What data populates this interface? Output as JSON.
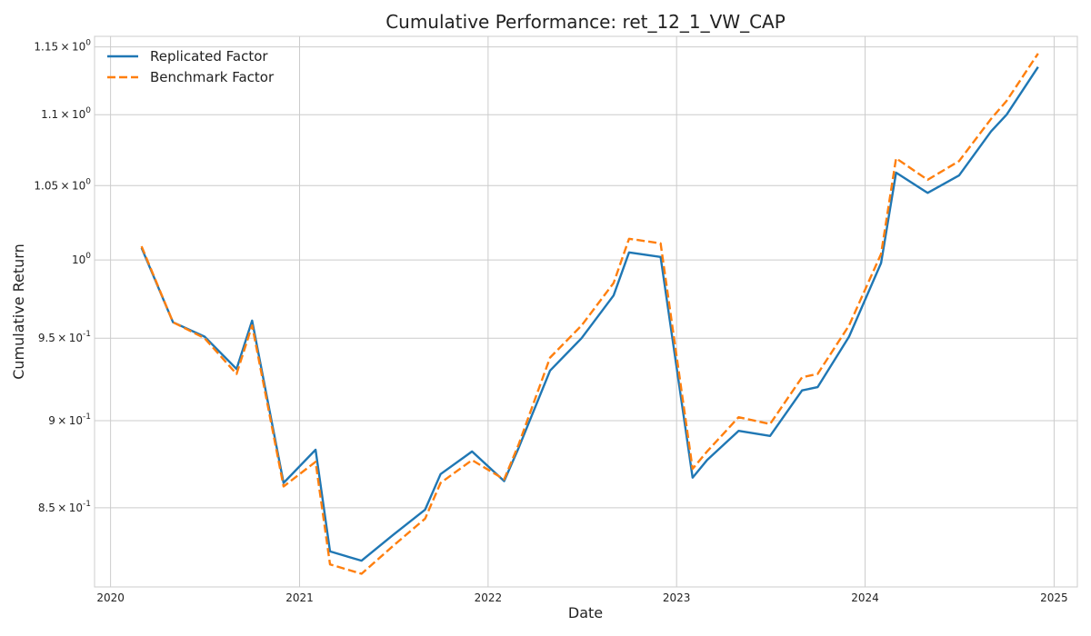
{
  "chart_data": {
    "type": "line",
    "title": "Cumulative Performance: ret_12_1_VW_CAP",
    "xlabel": "Date",
    "ylabel": "Cumulative Return",
    "yscale": "log",
    "xlim": [
      "2019-12-01",
      "2025-02-15"
    ],
    "ylim": [
      0.807,
      1.158
    ],
    "grid": true,
    "legend_position": "top-left",
    "x_ticks": [
      "2020",
      "2021",
      "2022",
      "2023",
      "2024",
      "2025"
    ],
    "y_ticks": [
      {
        "value": 0.85,
        "mant": "8.5",
        "exp": "-1"
      },
      {
        "value": 0.9,
        "mant": "9",
        "exp": "-1"
      },
      {
        "value": 0.95,
        "mant": "9.5",
        "exp": "-1"
      },
      {
        "value": 1.0,
        "mant": "",
        "exp": "0"
      },
      {
        "value": 1.05,
        "mant": "1.05",
        "exp": "0"
      },
      {
        "value": 1.1,
        "mant": "1.1",
        "exp": "0"
      },
      {
        "value": 1.15,
        "mant": "1.15",
        "exp": "0"
      }
    ],
    "series": [
      {
        "name": "Replicated Factor",
        "color": "#1f77b4",
        "style": "solid",
        "points": [
          [
            "2020-03-01",
            1.008
          ],
          [
            "2020-05-01",
            0.96
          ],
          [
            "2020-07-01",
            0.951
          ],
          [
            "2020-09-01",
            0.931
          ],
          [
            "2020-10-01",
            0.961
          ],
          [
            "2020-12-01",
            0.864
          ],
          [
            "2021-02-01",
            0.883
          ],
          [
            "2021-03-01",
            0.826
          ],
          [
            "2021-05-01",
            0.821
          ],
          [
            "2021-07-01",
            0.835
          ],
          [
            "2021-09-01",
            0.849
          ],
          [
            "2021-10-01",
            0.869
          ],
          [
            "2021-12-01",
            0.882
          ],
          [
            "2022-02-01",
            0.865
          ],
          [
            "2022-03-01",
            0.884
          ],
          [
            "2022-05-01",
            0.93
          ],
          [
            "2022-07-01",
            0.95
          ],
          [
            "2022-09-01",
            0.977
          ],
          [
            "2022-10-01",
            1.005
          ],
          [
            "2022-12-01",
            1.002
          ],
          [
            "2023-02-01",
            0.867
          ],
          [
            "2023-03-01",
            0.877
          ],
          [
            "2023-05-01",
            0.894
          ],
          [
            "2023-07-01",
            0.891
          ],
          [
            "2023-09-01",
            0.918
          ],
          [
            "2023-10-01",
            0.92
          ],
          [
            "2023-12-01",
            0.951
          ],
          [
            "2024-02-01",
            0.998
          ],
          [
            "2024-03-01",
            1.059
          ],
          [
            "2024-05-01",
            1.045
          ],
          [
            "2024-07-01",
            1.057
          ],
          [
            "2024-09-01",
            1.088
          ],
          [
            "2024-10-01",
            1.1
          ],
          [
            "2024-12-01",
            1.135
          ]
        ]
      },
      {
        "name": "Benchmark Factor",
        "color": "#ff7f0e",
        "style": "dashed",
        "points": [
          [
            "2020-03-01",
            1.009
          ],
          [
            "2020-05-01",
            0.96
          ],
          [
            "2020-07-01",
            0.95
          ],
          [
            "2020-09-01",
            0.928
          ],
          [
            "2020-10-01",
            0.958
          ],
          [
            "2020-12-01",
            0.862
          ],
          [
            "2021-02-01",
            0.876
          ],
          [
            "2021-03-01",
            0.819
          ],
          [
            "2021-05-01",
            0.814
          ],
          [
            "2021-07-01",
            0.829
          ],
          [
            "2021-09-01",
            0.844
          ],
          [
            "2021-10-01",
            0.864
          ],
          [
            "2021-12-01",
            0.877
          ],
          [
            "2022-02-01",
            0.866
          ],
          [
            "2022-03-01",
            0.886
          ],
          [
            "2022-05-01",
            0.938
          ],
          [
            "2022-07-01",
            0.958
          ],
          [
            "2022-09-01",
            0.985
          ],
          [
            "2022-10-01",
            1.014
          ],
          [
            "2022-12-01",
            1.011
          ],
          [
            "2023-02-01",
            0.872
          ],
          [
            "2023-03-01",
            0.882
          ],
          [
            "2023-05-01",
            0.902
          ],
          [
            "2023-07-01",
            0.898
          ],
          [
            "2023-09-01",
            0.926
          ],
          [
            "2023-10-01",
            0.928
          ],
          [
            "2023-12-01",
            0.958
          ],
          [
            "2024-02-01",
            1.004
          ],
          [
            "2024-03-01",
            1.069
          ],
          [
            "2024-05-01",
            1.054
          ],
          [
            "2024-07-01",
            1.067
          ],
          [
            "2024-09-01",
            1.097
          ],
          [
            "2024-10-01",
            1.11
          ],
          [
            "2024-12-01",
            1.145
          ]
        ]
      }
    ]
  }
}
